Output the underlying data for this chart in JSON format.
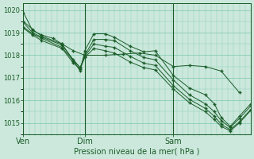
{
  "xlabel": "Pression niveau de la mer( hPa )",
  "background_color": "#cce8dc",
  "grid_color": "#88ccb8",
  "line_color": "#1a5c28",
  "marker_color": "#1a5c28",
  "ylim": [
    1014.5,
    1020.3
  ],
  "yticks": [
    1015,
    1016,
    1017,
    1018,
    1019,
    1020
  ],
  "series": [
    [
      0.0,
      1019.9,
      0.04,
      1019.1,
      0.08,
      1018.9,
      0.13,
      1018.75,
      0.17,
      1018.5,
      0.22,
      1018.2,
      0.27,
      1018.0,
      0.36,
      1018.0,
      0.44,
      1018.05,
      0.51,
      1018.1,
      0.58,
      1018.0,
      0.66,
      1017.5,
      0.73,
      1017.55,
      0.8,
      1017.5,
      0.87,
      1017.3,
      0.95,
      1016.35
    ],
    [
      0.0,
      1019.5,
      0.04,
      1019.15,
      0.08,
      1018.85,
      0.17,
      1018.5,
      0.22,
      1017.75,
      0.25,
      1017.3,
      0.27,
      1018.2,
      0.31,
      1018.95,
      0.36,
      1018.95,
      0.4,
      1018.8,
      0.47,
      1018.4,
      0.53,
      1018.15,
      0.58,
      1018.2,
      0.66,
      1017.1,
      0.73,
      1016.55,
      0.8,
      1016.25,
      0.84,
      1015.85,
      0.87,
      1015.25,
      0.91,
      1014.85,
      0.95,
      1015.3,
      1.0,
      1015.85
    ],
    [
      0.0,
      1019.45,
      0.04,
      1019.0,
      0.08,
      1018.8,
      0.17,
      1018.45,
      0.22,
      1017.8,
      0.25,
      1017.45,
      0.27,
      1018.0,
      0.31,
      1018.7,
      0.36,
      1018.7,
      0.4,
      1018.65,
      0.47,
      1018.2,
      0.53,
      1017.9,
      0.58,
      1017.8,
      0.66,
      1016.9,
      0.73,
      1016.25,
      0.8,
      1015.85,
      0.84,
      1015.5,
      0.87,
      1015.1,
      0.91,
      1014.8,
      0.95,
      1015.2,
      1.0,
      1015.75
    ],
    [
      0.0,
      1019.25,
      0.04,
      1018.95,
      0.08,
      1018.75,
      0.17,
      1018.35,
      0.22,
      1017.75,
      0.25,
      1017.45,
      0.27,
      1017.95,
      0.31,
      1018.5,
      0.36,
      1018.4,
      0.4,
      1018.35,
      0.47,
      1017.95,
      0.53,
      1017.65,
      0.58,
      1017.55,
      0.66,
      1016.65,
      0.73,
      1016.05,
      0.8,
      1015.65,
      0.84,
      1015.3,
      0.87,
      1014.95,
      0.91,
      1014.7,
      0.95,
      1015.05,
      1.0,
      1015.6
    ],
    [
      0.0,
      1019.2,
      0.04,
      1018.9,
      0.08,
      1018.65,
      0.17,
      1018.3,
      0.22,
      1017.65,
      0.25,
      1017.4,
      0.27,
      1017.9,
      0.31,
      1018.3,
      0.36,
      1018.2,
      0.4,
      1018.1,
      0.47,
      1017.7,
      0.53,
      1017.45,
      0.58,
      1017.35,
      0.66,
      1016.5,
      0.73,
      1015.9,
      0.8,
      1015.5,
      0.84,
      1015.15,
      0.87,
      1014.85,
      0.91,
      1014.65,
      0.95,
      1015.0,
      1.0,
      1015.55
    ]
  ],
  "vline_positions": [
    0.0,
    0.27,
    0.66
  ],
  "xtick_positions": [
    0.0,
    0.27,
    0.66
  ],
  "xtick_labels": [
    "Ven",
    "Dim",
    "Sam"
  ]
}
